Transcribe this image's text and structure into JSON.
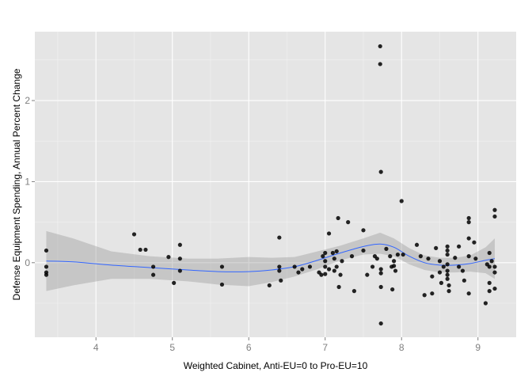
{
  "chart_data": {
    "type": "scatter",
    "xlabel": "Weighted Cabinet, Anti-EU=0 to Pro-EU=10",
    "ylabel": "Defense Equipment Spending, Annual Percent Change",
    "xlim": [
      3.2,
      9.5
    ],
    "ylim": [
      -0.92,
      2.85
    ],
    "x_ticks": [
      4,
      5,
      6,
      7,
      8,
      9
    ],
    "y_ticks": [
      0,
      1,
      2
    ],
    "x_tick_labels": [
      "4",
      "5",
      "6",
      "7",
      "8",
      "9"
    ],
    "y_tick_labels": [
      "0",
      "1",
      "2"
    ],
    "grid": true,
    "legend": "none",
    "colors": {
      "panel": "#e5e5e5",
      "grid_major": "#ffffff",
      "grid_minor": "#f2f2f2",
      "points": "#000000",
      "smooth_line": "#3366ff",
      "confidence_band": "#999999"
    },
    "points": [
      {
        "x": 3.35,
        "y": 0.15
      },
      {
        "x": 3.35,
        "y": -0.05
      },
      {
        "x": 3.35,
        "y": -0.12
      },
      {
        "x": 3.35,
        "y": -0.15
      },
      {
        "x": 4.5,
        "y": 0.35
      },
      {
        "x": 4.58,
        "y": 0.16
      },
      {
        "x": 4.65,
        "y": 0.16
      },
      {
        "x": 4.75,
        "y": -0.05
      },
      {
        "x": 4.75,
        "y": -0.15
      },
      {
        "x": 4.95,
        "y": 0.07
      },
      {
        "x": 5.02,
        "y": -0.25
      },
      {
        "x": 5.1,
        "y": 0.22
      },
      {
        "x": 5.1,
        "y": 0.05
      },
      {
        "x": 5.1,
        "y": -0.1
      },
      {
        "x": 5.65,
        "y": -0.05
      },
      {
        "x": 5.65,
        "y": -0.27
      },
      {
        "x": 6.27,
        "y": -0.28
      },
      {
        "x": 6.4,
        "y": 0.31
      },
      {
        "x": 6.4,
        "y": -0.05
      },
      {
        "x": 6.4,
        "y": -0.1
      },
      {
        "x": 6.42,
        "y": -0.22
      },
      {
        "x": 6.6,
        "y": -0.05
      },
      {
        "x": 6.65,
        "y": -0.12
      },
      {
        "x": 6.7,
        "y": -0.08
      },
      {
        "x": 6.8,
        "y": -0.05
      },
      {
        "x": 6.92,
        "y": -0.12
      },
      {
        "x": 6.95,
        "y": -0.15
      },
      {
        "x": 6.97,
        "y": 0.08
      },
      {
        "x": 7.0,
        "y": 0.12
      },
      {
        "x": 7.0,
        "y": 0.02
      },
      {
        "x": 7.0,
        "y": -0.05
      },
      {
        "x": 7.0,
        "y": -0.14
      },
      {
        "x": 7.05,
        "y": 0.36
      },
      {
        "x": 7.05,
        "y": -0.08
      },
      {
        "x": 7.1,
        "y": 0.12
      },
      {
        "x": 7.12,
        "y": 0.05
      },
      {
        "x": 7.12,
        "y": -0.1
      },
      {
        "x": 7.15,
        "y": 0.14
      },
      {
        "x": 7.15,
        "y": -0.05
      },
      {
        "x": 7.17,
        "y": 0.55
      },
      {
        "x": 7.18,
        "y": -0.3
      },
      {
        "x": 7.2,
        "y": -0.15
      },
      {
        "x": 7.22,
        "y": 0.02
      },
      {
        "x": 7.3,
        "y": 0.5
      },
      {
        "x": 7.35,
        "y": 0.08
      },
      {
        "x": 7.38,
        "y": -0.35
      },
      {
        "x": 7.5,
        "y": 0.4
      },
      {
        "x": 7.5,
        "y": 0.15
      },
      {
        "x": 7.55,
        "y": -0.15
      },
      {
        "x": 7.62,
        "y": -0.05
      },
      {
        "x": 7.65,
        "y": 0.08
      },
      {
        "x": 7.68,
        "y": 0.05
      },
      {
        "x": 7.72,
        "y": 2.67
      },
      {
        "x": 7.72,
        "y": 2.45
      },
      {
        "x": 7.73,
        "y": 1.12
      },
      {
        "x": 7.73,
        "y": -0.08
      },
      {
        "x": 7.73,
        "y": -0.13
      },
      {
        "x": 7.73,
        "y": -0.3
      },
      {
        "x": 7.73,
        "y": -0.75
      },
      {
        "x": 7.8,
        "y": 0.17
      },
      {
        "x": 7.85,
        "y": 0.08
      },
      {
        "x": 7.87,
        "y": -0.05
      },
      {
        "x": 7.88,
        "y": -0.33
      },
      {
        "x": 7.9,
        "y": 0.02
      },
      {
        "x": 7.9,
        "y": -0.04
      },
      {
        "x": 7.92,
        "y": -0.1
      },
      {
        "x": 7.95,
        "y": 0.1
      },
      {
        "x": 8.0,
        "y": 0.76
      },
      {
        "x": 8.02,
        "y": 0.1
      },
      {
        "x": 8.2,
        "y": 0.22
      },
      {
        "x": 8.25,
        "y": 0.08
      },
      {
        "x": 8.3,
        "y": -0.4
      },
      {
        "x": 8.35,
        "y": 0.05
      },
      {
        "x": 8.4,
        "y": -0.17
      },
      {
        "x": 8.4,
        "y": -0.38
      },
      {
        "x": 8.45,
        "y": 0.18
      },
      {
        "x": 8.5,
        "y": 0.02
      },
      {
        "x": 8.5,
        "y": -0.12
      },
      {
        "x": 8.52,
        "y": -0.25
      },
      {
        "x": 8.55,
        "y": -0.05
      },
      {
        "x": 8.6,
        "y": 0.2
      },
      {
        "x": 8.6,
        "y": 0.15
      },
      {
        "x": 8.6,
        "y": 0.1
      },
      {
        "x": 8.6,
        "y": -0.02
      },
      {
        "x": 8.6,
        "y": -0.1
      },
      {
        "x": 8.6,
        "y": -0.15
      },
      {
        "x": 8.6,
        "y": -0.2
      },
      {
        "x": 8.62,
        "y": -0.28
      },
      {
        "x": 8.62,
        "y": -0.35
      },
      {
        "x": 8.7,
        "y": 0.06
      },
      {
        "x": 8.75,
        "y": 0.2
      },
      {
        "x": 8.75,
        "y": -0.05
      },
      {
        "x": 8.8,
        "y": -0.1
      },
      {
        "x": 8.82,
        "y": -0.22
      },
      {
        "x": 8.88,
        "y": 0.55
      },
      {
        "x": 8.88,
        "y": 0.5
      },
      {
        "x": 8.88,
        "y": 0.3
      },
      {
        "x": 8.88,
        "y": 0.08
      },
      {
        "x": 8.88,
        "y": -0.38
      },
      {
        "x": 8.95,
        "y": 0.25
      },
      {
        "x": 8.97,
        "y": 0.05
      },
      {
        "x": 9.1,
        "y": -0.5
      },
      {
        "x": 9.12,
        "y": -0.02
      },
      {
        "x": 9.15,
        "y": 0.12
      },
      {
        "x": 9.15,
        "y": -0.05
      },
      {
        "x": 9.15,
        "y": -0.25
      },
      {
        "x": 9.15,
        "y": -0.35
      },
      {
        "x": 9.18,
        "y": 0.02
      },
      {
        "x": 9.22,
        "y": 0.65
      },
      {
        "x": 9.22,
        "y": 0.57
      },
      {
        "x": 9.22,
        "y": -0.05
      },
      {
        "x": 9.22,
        "y": -0.12
      },
      {
        "x": 9.22,
        "y": -0.32
      }
    ],
    "smooth": [
      {
        "x": 3.35,
        "y": 0.02,
        "lo": -0.35,
        "hi": 0.39
      },
      {
        "x": 3.7,
        "y": 0.01,
        "lo": -0.28,
        "hi": 0.3
      },
      {
        "x": 4.2,
        "y": -0.03,
        "lo": -0.2,
        "hi": 0.14
      },
      {
        "x": 4.7,
        "y": -0.06,
        "lo": -0.2,
        "hi": 0.08
      },
      {
        "x": 5.2,
        "y": -0.09,
        "lo": -0.23,
        "hi": 0.05
      },
      {
        "x": 5.6,
        "y": -0.11,
        "lo": -0.27,
        "hi": 0.05
      },
      {
        "x": 6.0,
        "y": -0.11,
        "lo": -0.29,
        "hi": 0.07
      },
      {
        "x": 6.3,
        "y": -0.09,
        "lo": -0.24,
        "hi": 0.06
      },
      {
        "x": 6.6,
        "y": -0.05,
        "lo": -0.17,
        "hi": 0.07
      },
      {
        "x": 6.9,
        "y": 0.03,
        "lo": -0.08,
        "hi": 0.14
      },
      {
        "x": 7.2,
        "y": 0.12,
        "lo": 0.03,
        "hi": 0.21
      },
      {
        "x": 7.5,
        "y": 0.2,
        "lo": 0.1,
        "hi": 0.3
      },
      {
        "x": 7.72,
        "y": 0.23,
        "lo": 0.11,
        "hi": 0.37
      },
      {
        "x": 7.9,
        "y": 0.19,
        "lo": 0.08,
        "hi": 0.3
      },
      {
        "x": 8.1,
        "y": 0.08,
        "lo": -0.02,
        "hi": 0.18
      },
      {
        "x": 8.3,
        "y": 0.0,
        "lo": -0.09,
        "hi": 0.09
      },
      {
        "x": 8.5,
        "y": -0.03,
        "lo": -0.12,
        "hi": 0.06
      },
      {
        "x": 8.7,
        "y": -0.03,
        "lo": -0.12,
        "hi": 0.06
      },
      {
        "x": 8.9,
        "y": -0.01,
        "lo": -0.11,
        "hi": 0.09
      },
      {
        "x": 9.1,
        "y": 0.03,
        "lo": -0.13,
        "hi": 0.19
      },
      {
        "x": 9.22,
        "y": 0.05,
        "lo": -0.2,
        "hi": 0.3
      }
    ]
  }
}
